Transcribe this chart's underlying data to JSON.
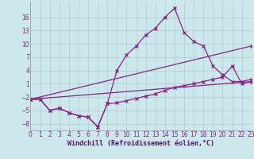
{
  "xlabel": "Windchill (Refroidissement éolien,°C)",
  "bg_color": "#cce8ec",
  "grid_color": "#aacccc",
  "line_color": "#882288",
  "line1_x": [
    0,
    1,
    2,
    3,
    4,
    5,
    6,
    7,
    8,
    9,
    10,
    11,
    12,
    13,
    14,
    15,
    16,
    17,
    18,
    19,
    20,
    21,
    22,
    23
  ],
  "line1_y": [
    -2.5,
    -2.5,
    -5.0,
    -4.5,
    -5.5,
    -6.2,
    -6.5,
    -8.7,
    -3.5,
    4.0,
    7.5,
    9.5,
    12.0,
    13.5,
    16.0,
    18.0,
    12.5,
    10.5,
    9.5,
    5.0,
    3.0,
    1.5,
    1.5,
    2.0
  ],
  "line2_x": [
    0,
    1,
    2,
    3,
    4,
    5,
    6,
    7,
    8,
    9,
    10,
    11,
    12,
    13,
    14,
    15,
    16,
    17,
    18,
    19,
    20,
    21,
    22,
    23
  ],
  "line2_y": [
    -2.5,
    -2.5,
    -5.0,
    -4.5,
    -5.5,
    -6.2,
    -6.5,
    -8.7,
    -3.5,
    -3.3,
    -2.8,
    -2.3,
    -1.8,
    -1.3,
    -0.5,
    0.2,
    0.6,
    1.0,
    1.5,
    2.0,
    2.5,
    5.0,
    1.0,
    1.5
  ],
  "line3_x": [
    0,
    23
  ],
  "line3_y": [
    -2.5,
    9.5
  ],
  "line4_x": [
    0,
    23
  ],
  "line4_y": [
    -2.5,
    1.5
  ],
  "ylim": [
    -9.5,
    19.5
  ],
  "xlim": [
    0,
    23
  ],
  "yticks": [
    -8,
    -5,
    -2,
    1,
    4,
    7,
    10,
    13,
    16
  ],
  "xticks": [
    0,
    1,
    2,
    3,
    4,
    5,
    6,
    7,
    8,
    9,
    10,
    11,
    12,
    13,
    14,
    15,
    16,
    17,
    18,
    19,
    20,
    21,
    22,
    23
  ],
  "tick_fontsize": 5.5,
  "xlabel_fontsize": 6.0,
  "lw": 0.9,
  "ms": 2.8,
  "mew": 0.9
}
